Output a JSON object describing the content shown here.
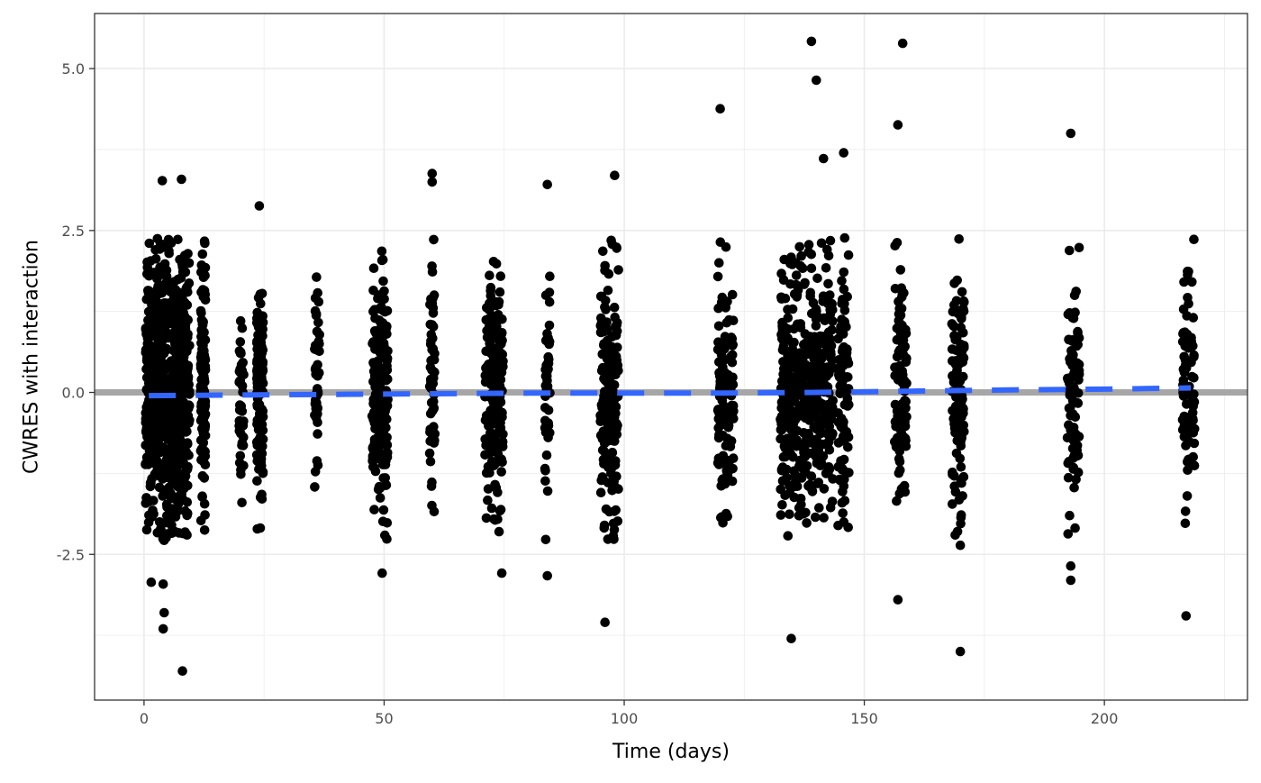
{
  "chart_data": {
    "type": "scatter",
    "title": "",
    "xlabel": "Time (days)",
    "ylabel": "CWRES with interaction",
    "xlim": [
      -10.3,
      229.8
    ],
    "ylim": [
      -4.75,
      5.85
    ],
    "xticks": [
      0,
      50,
      100,
      150,
      200
    ],
    "xtick_labels": [
      "0",
      "50",
      "100",
      "150",
      "200"
    ],
    "yticks": [
      -2.5,
      0.0,
      2.5,
      5.0
    ],
    "ytick_labels": [
      "-2.5",
      "0.0",
      "2.5",
      "5.0"
    ],
    "grid": true,
    "legend": "none",
    "reference_line": {
      "y": 0,
      "color": "#a6a6a6"
    },
    "trend_line": {
      "style": "dashed",
      "color": "#3366ff",
      "x": [
        1,
        20,
        40,
        60,
        80,
        100,
        120,
        140,
        160,
        180,
        200,
        218
      ],
      "y": [
        -0.05,
        -0.04,
        -0.03,
        -0.02,
        -0.01,
        -0.01,
        -0.01,
        0.0,
        0.02,
        0.04,
        0.05,
        0.07
      ]
    },
    "point_color": "#000000",
    "clusters": [
      {
        "x_min": 0.3,
        "x_max": 9.5,
        "count": 700,
        "sd": 1.05
      },
      {
        "x_min": 11.8,
        "x_max": 12.8,
        "count": 120,
        "sd": 0.95
      },
      {
        "x_min": 19.8,
        "x_max": 20.8,
        "count": 40,
        "sd": 0.8
      },
      {
        "x_min": 23.5,
        "x_max": 24.8,
        "count": 160,
        "sd": 0.85
      },
      {
        "x_min": 35.5,
        "x_max": 36.6,
        "count": 50,
        "sd": 0.8
      },
      {
        "x_min": 47.5,
        "x_max": 50.8,
        "count": 180,
        "sd": 0.9
      },
      {
        "x_min": 59.5,
        "x_max": 60.6,
        "count": 55,
        "sd": 0.9
      },
      {
        "x_min": 71.0,
        "x_max": 74.8,
        "count": 190,
        "sd": 0.9
      },
      {
        "x_min": 83.5,
        "x_max": 84.6,
        "count": 45,
        "sd": 0.95
      },
      {
        "x_min": 95.0,
        "x_max": 98.8,
        "count": 170,
        "sd": 0.95
      },
      {
        "x_min": 119.5,
        "x_max": 122.8,
        "count": 130,
        "sd": 0.9
      },
      {
        "x_min": 132.5,
        "x_max": 143.5,
        "count": 450,
        "sd": 1.0
      },
      {
        "x_min": 144.5,
        "x_max": 146.8,
        "count": 90,
        "sd": 0.95
      },
      {
        "x_min": 156.3,
        "x_max": 158.8,
        "count": 110,
        "sd": 0.9
      },
      {
        "x_min": 168.2,
        "x_max": 170.8,
        "count": 120,
        "sd": 0.9
      },
      {
        "x_min": 192.3,
        "x_max": 194.8,
        "count": 100,
        "sd": 0.9
      },
      {
        "x_min": 216.3,
        "x_max": 218.8,
        "count": 80,
        "sd": 0.9
      }
    ],
    "extreme_points": [
      {
        "x": 8.0,
        "y": -4.3
      },
      {
        "x": 1.5,
        "y": -2.93
      },
      {
        "x": 4.0,
        "y": -2.96
      },
      {
        "x": 4.2,
        "y": -3.4
      },
      {
        "x": 4.0,
        "y": -3.65
      },
      {
        "x": 3.8,
        "y": 3.27
      },
      {
        "x": 7.8,
        "y": 3.29
      },
      {
        "x": 24.0,
        "y": 2.88
      },
      {
        "x": 49.6,
        "y": -2.79
      },
      {
        "x": 60.0,
        "y": 3.38
      },
      {
        "x": 60.0,
        "y": 3.25
      },
      {
        "x": 74.5,
        "y": -2.79
      },
      {
        "x": 84.0,
        "y": 3.21
      },
      {
        "x": 84.0,
        "y": -2.83
      },
      {
        "x": 96.0,
        "y": -3.55
      },
      {
        "x": 98.0,
        "y": 3.35
      },
      {
        "x": 120.0,
        "y": 4.38
      },
      {
        "x": 134.8,
        "y": -3.8
      },
      {
        "x": 139.0,
        "y": 5.42
      },
      {
        "x": 140.0,
        "y": 4.82
      },
      {
        "x": 141.5,
        "y": 3.61
      },
      {
        "x": 145.7,
        "y": 3.7
      },
      {
        "x": 157.0,
        "y": -3.2
      },
      {
        "x": 157.0,
        "y": 4.13
      },
      {
        "x": 158.0,
        "y": 5.39
      },
      {
        "x": 170.0,
        "y": -4.0
      },
      {
        "x": 170.0,
        "y": -2.36
      },
      {
        "x": 193.0,
        "y": 4.0
      },
      {
        "x": 193.0,
        "y": -2.68
      },
      {
        "x": 193.0,
        "y": -2.9
      },
      {
        "x": 217.0,
        "y": -3.45
      }
    ]
  }
}
